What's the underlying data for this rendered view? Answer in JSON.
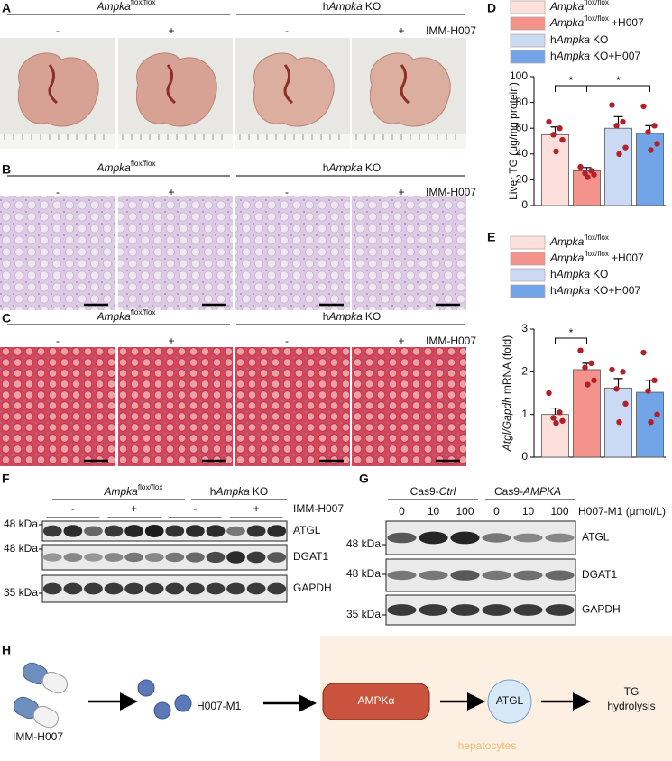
{
  "chart_data": [
    {
      "type": "bar",
      "panel_label": "D",
      "ylabel": "Liver TG (μg/mg protein)",
      "ylim": [
        0,
        100
      ],
      "yticks": [
        0,
        20,
        40,
        60,
        80,
        100
      ],
      "series": [
        {
          "name": "Ampka",
          "sup": "flox/flox",
          "color": "#fde0dc",
          "values": [
            55
          ],
          "errors": [
            6
          ],
          "points": [
            65,
            60,
            55,
            51,
            42
          ]
        },
        {
          "name": "Ampka",
          "sup": "flox/flox",
          "suffix": "+H007",
          "color": "#f4938b",
          "values": [
            27
          ],
          "errors": [
            2.5
          ],
          "points": [
            30,
            27,
            25,
            24,
            22
          ]
        },
        {
          "prefix": "h",
          "name": "Ampka",
          "suffix": "KO",
          "color": "#cbdaf4",
          "values": [
            60
          ],
          "errors": [
            9
          ],
          "points": [
            78,
            65,
            62,
            45,
            40
          ]
        },
        {
          "prefix": "h",
          "name": "Ampka",
          "suffix": "KO+H007",
          "color": "#72a5e8",
          "values": [
            56
          ],
          "errors": [
            6
          ],
          "points": [
            77,
            62,
            57,
            48,
            43
          ]
        }
      ],
      "annotations": [
        {
          "text": "*",
          "from": 0,
          "to": 1
        },
        {
          "text": "*",
          "from": 1,
          "to": 3
        }
      ]
    },
    {
      "type": "bar",
      "panel_label": "E",
      "ylabel": {
        "italic": "Atgl/Gapdh",
        "text": "mRNA (fold)"
      },
      "ylim": [
        0,
        3
      ],
      "yticks": [
        0,
        1,
        2,
        3
      ],
      "series": [
        {
          "name": "Ampka",
          "sup": "flox/flox",
          "color": "#fde0dc",
          "values": [
            1.0
          ],
          "errors": [
            0.15
          ],
          "points": [
            1.5,
            1.05,
            0.92,
            0.85,
            0.8
          ]
        },
        {
          "name": "Ampka",
          "sup": "flox/flox",
          "suffix": "+H007",
          "color": "#f4938b",
          "values": [
            2.05
          ],
          "errors": [
            0.15
          ],
          "points": [
            2.5,
            2.2,
            2.1,
            1.8,
            1.7
          ]
        },
        {
          "prefix": "h",
          "name": "Ampka",
          "suffix": "KO",
          "color": "#cbdaf4",
          "values": [
            1.62
          ],
          "errors": [
            0.22
          ],
          "points": [
            2.05,
            2.0,
            1.6,
            1.25,
            0.82
          ]
        },
        {
          "prefix": "h",
          "name": "Ampka",
          "suffix": "KO+H007",
          "color": "#72a5e8",
          "values": [
            1.52
          ],
          "errors": [
            0.28
          ],
          "points": [
            2.45,
            1.8,
            1.55,
            1.0,
            0.82
          ]
        }
      ],
      "annotations": [
        {
          "text": "*",
          "from": 0,
          "to": 1
        }
      ]
    }
  ],
  "figure": {
    "panel_a": {
      "letter": "A",
      "groups": [
        {
          "gene": "Ampka",
          "sup": "flox/flox"
        },
        {
          "prefix": "h",
          "gene": "Ampka",
          "suffix": "KO"
        }
      ],
      "signs": [
        "-",
        "+",
        "-",
        "+"
      ],
      "treatment": "IMM-H007"
    },
    "panel_b": {
      "letter": "B",
      "groups": [
        {
          "gene": "Ampka",
          "sup": "flox/flox"
        },
        {
          "prefix": "h",
          "gene": "Ampka",
          "suffix": "KO"
        }
      ],
      "signs": [
        "-",
        "+",
        "-",
        "+"
      ],
      "treatment": "IMM-H007"
    },
    "panel_c": {
      "letter": "C",
      "groups": [
        {
          "gene": "Ampka",
          "sup": "flox/flox"
        },
        {
          "prefix": "h",
          "gene": "Ampka",
          "suffix": "KO"
        }
      ],
      "signs": [
        "-",
        "+",
        "-",
        "+"
      ],
      "treatment": "IMM-H007"
    },
    "panel_f": {
      "letter": "F",
      "groups": [
        {
          "gene": "Ampka",
          "sup": "flox/flox"
        },
        {
          "prefix": "h",
          "gene": "Ampka",
          "suffix": "KO"
        }
      ],
      "signs": [
        "-",
        "+",
        "-",
        "+"
      ],
      "treatment": "IMM-H007",
      "markers": [
        "48 kDa",
        "48 kDa",
        "35 kDa"
      ],
      "proteins": [
        "ATGL",
        "DGAT1",
        "GAPDH"
      ]
    },
    "panel_g": {
      "letter": "G",
      "groups": [
        {
          "prefix": "Cas9-",
          "gene": "Ctrl"
        },
        {
          "prefix": "Cas9-",
          "gene": "AMPKA"
        }
      ],
      "doses": [
        "0",
        "10",
        "100",
        "0",
        "10",
        "100"
      ],
      "dose_label": "H007-M1 (μmol/L)",
      "markers": [
        "48 kDa",
        "48 kDa",
        "35 kDa"
      ],
      "proteins": [
        "ATGL",
        "DGAT1",
        "GAPDH"
      ]
    },
    "panel_h": {
      "letter": "H",
      "drug": "IMM-H007",
      "metabolite": "H007-M1",
      "kinase": "AMPKα",
      "target": "ATGL",
      "outcome": [
        "TG",
        "hydrolysis"
      ],
      "compartment": "hepatocytes"
    }
  }
}
